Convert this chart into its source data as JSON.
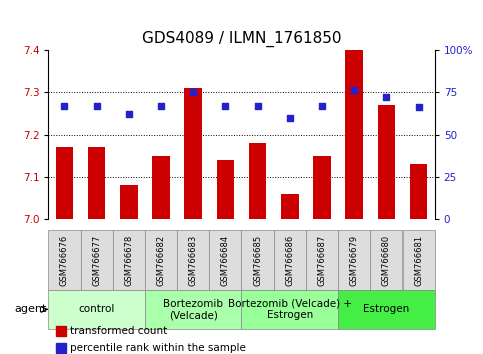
{
  "title": "GDS4089 / ILMN_1761850",
  "samples": [
    "GSM766676",
    "GSM766677",
    "GSM766678",
    "GSM766682",
    "GSM766683",
    "GSM766684",
    "GSM766685",
    "GSM766686",
    "GSM766687",
    "GSM766679",
    "GSM766680",
    "GSM766681"
  ],
  "bar_values": [
    7.17,
    7.17,
    7.08,
    7.15,
    7.31,
    7.14,
    7.18,
    7.06,
    7.15,
    7.4,
    7.27,
    7.13
  ],
  "dot_values": [
    67,
    67,
    62,
    67,
    75,
    67,
    67,
    60,
    67,
    76,
    72,
    66
  ],
  "ylim_left": [
    7.0,
    7.4
  ],
  "ylim_right": [
    0,
    100
  ],
  "yticks_left": [
    7.0,
    7.1,
    7.2,
    7.3,
    7.4
  ],
  "yticks_right": [
    0,
    25,
    50,
    75,
    100
  ],
  "bar_color": "#cc0000",
  "dot_color": "#2222cc",
  "bar_width": 0.55,
  "groups": [
    {
      "label": "control",
      "start": 0,
      "end": 3,
      "color": "#ccffcc"
    },
    {
      "label": "Bortezomib\n(Velcade)",
      "start": 3,
      "end": 6,
      "color": "#aaffaa"
    },
    {
      "label": "Bortezomib (Velcade) +\nEstrogen",
      "start": 6,
      "end": 9,
      "color": "#99ff99"
    },
    {
      "label": "Estrogen",
      "start": 9,
      "end": 12,
      "color": "#44ee44"
    }
  ],
  "agent_label": "agent",
  "legend_items": [
    {
      "color": "#cc0000",
      "label": "transformed count"
    },
    {
      "color": "#2222cc",
      "label": "percentile rank within the sample"
    }
  ],
  "left_tick_color": "#cc0000",
  "right_tick_color": "#2222cc",
  "title_fontsize": 11,
  "tick_fontsize": 7.5,
  "sample_fontsize": 6,
  "group_label_fontsize": 7.5,
  "legend_fontsize": 7.5,
  "grid_linestyle": "dotted"
}
